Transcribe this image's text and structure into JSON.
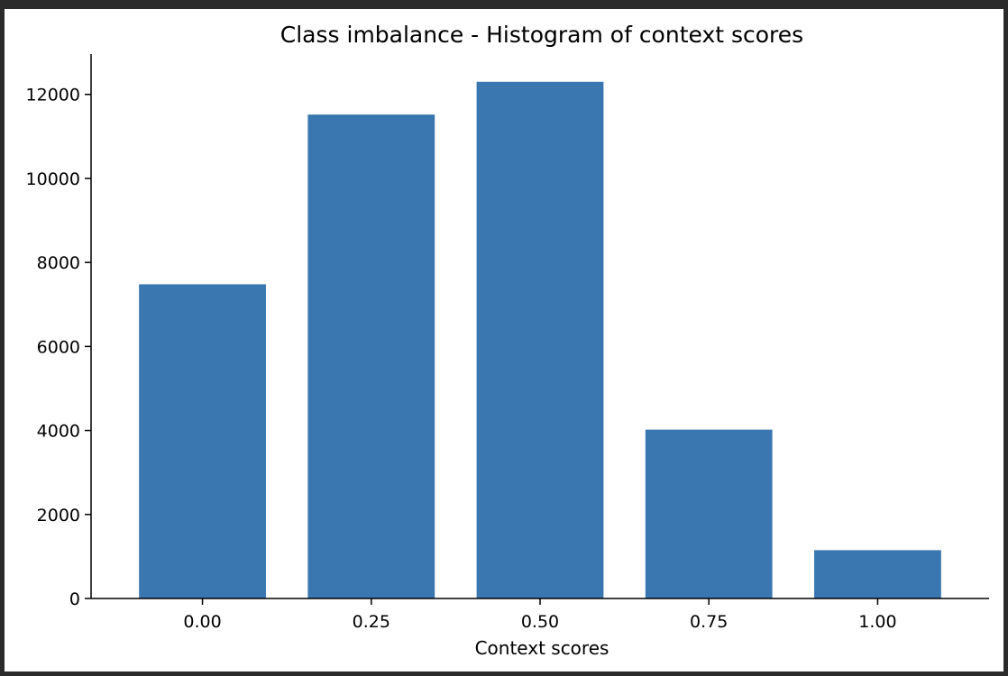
{
  "chart_data": {
    "type": "bar",
    "title": "Class imbalance - Histogram of context scores",
    "xlabel": "Context scores",
    "ylabel": "",
    "categories": [
      "0.00",
      "0.25",
      "0.50",
      "0.75",
      "1.00"
    ],
    "x": [
      0.0,
      0.25,
      0.5,
      0.75,
      1.0
    ],
    "values": [
      7480,
      11520,
      12300,
      4020,
      1150
    ],
    "bar_width": 0.2,
    "xlim": [
      -0.165,
      1.165
    ],
    "ylim": [
      0,
      12960
    ],
    "yticks": [
      0,
      2000,
      4000,
      6000,
      8000,
      10000,
      12000
    ],
    "ytick_labels": [
      "0",
      "2000",
      "4000",
      "6000",
      "8000",
      "10000",
      "12000"
    ],
    "grid": false,
    "legend": "none",
    "colors": {
      "bar": "#3a76af",
      "axis": "#000000",
      "background": "#ffffff",
      "frame": "#2b2b2b"
    }
  }
}
